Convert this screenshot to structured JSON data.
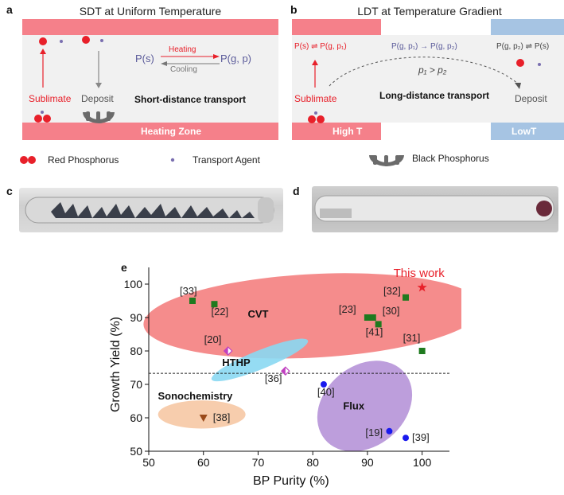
{
  "panels": {
    "a": {
      "label": "a",
      "title": "SDT at Uniform Temperature",
      "eq_left": "P(s)",
      "eq_right": "P(g, p)",
      "heating": "Heating",
      "cooling": "Cooling",
      "sublimate": "Sublimate",
      "deposit": "Deposit",
      "transport": "Short-distance transport",
      "zone": "Heating Zone",
      "colors": {
        "zone": "#f5808a",
        "red_p": "#e8202a",
        "agent": "#7a6fb0",
        "black_p": "#6b6b6b"
      }
    },
    "b": {
      "label": "b",
      "title": "LDT at Temperature Gradient",
      "eq_left": "P(s) ⇌ P(g, p₁)",
      "eq_mid": "P(g, p₁) → P(g, p₂)",
      "eq_right": "P(g, p₂) ⇌ P(s)",
      "pressure": "p₁ > p₂",
      "sublimate": "Sublimate",
      "deposit": "Deposit",
      "transport": "Long-distance transport",
      "high_t": "High T",
      "low_t": "LowT",
      "colors": {
        "hot": "#f5808a",
        "cold": "#a6c4e3"
      }
    },
    "legend": {
      "red_phosphorus": "Red Phosphorus",
      "transport_agent": "Transport Agent",
      "black_phosphorus": "Black Phosphorus"
    },
    "c": {
      "label": "c"
    },
    "d": {
      "label": "d"
    },
    "e": {
      "label": "e"
    }
  },
  "chart_data": {
    "type": "scatter",
    "xlabel": "BP Purity (%)",
    "ylabel": "Growth Yield (%)",
    "xlim": [
      50,
      105
    ],
    "ylim": [
      50,
      105
    ],
    "xticks": [
      50,
      60,
      70,
      80,
      90,
      100
    ],
    "yticks": [
      50,
      60,
      70,
      80,
      90,
      100
    ],
    "threshold_y": 73.3,
    "groups": [
      {
        "label": "CVT",
        "color": "#f47f80"
      },
      {
        "label": "HTHP",
        "color": "#8ad8f2"
      },
      {
        "label": "Sonochemistry",
        "color": "#f6c8a4"
      },
      {
        "label": "Flux",
        "color": "#b694d8"
      }
    ],
    "points": [
      {
        "ref": "[33]",
        "x": 58,
        "y": 95,
        "group": "CVT"
      },
      {
        "ref": "[22]",
        "x": 62,
        "y": 94,
        "group": "CVT"
      },
      {
        "ref": "[23]",
        "x": 90,
        "y": 90,
        "group": "CVT"
      },
      {
        "ref": "[30]",
        "x": 91,
        "y": 90,
        "group": "CVT"
      },
      {
        "ref": "[41]",
        "x": 92,
        "y": 88,
        "group": "CVT"
      },
      {
        "ref": "[32]",
        "x": 97,
        "y": 96,
        "group": "CVT"
      },
      {
        "ref": "[31]",
        "x": 100,
        "y": 80,
        "group": "CVT"
      },
      {
        "ref": "[20]",
        "x": 64.5,
        "y": 80,
        "group": "HTHP"
      },
      {
        "ref": "[36]",
        "x": 75,
        "y": 74,
        "group": "HTHP"
      },
      {
        "ref": "[38]",
        "x": 60,
        "y": 60,
        "group": "Sonochemistry"
      },
      {
        "ref": "[40]",
        "x": 82,
        "y": 70,
        "group": "Flux"
      },
      {
        "ref": "[19]",
        "x": 94,
        "y": 56,
        "group": "Flux"
      },
      {
        "ref": "[39]",
        "x": 97,
        "y": 54,
        "group": "Flux"
      },
      {
        "ref": "This work",
        "x": 100,
        "y": 99,
        "group": "This work"
      }
    ]
  }
}
